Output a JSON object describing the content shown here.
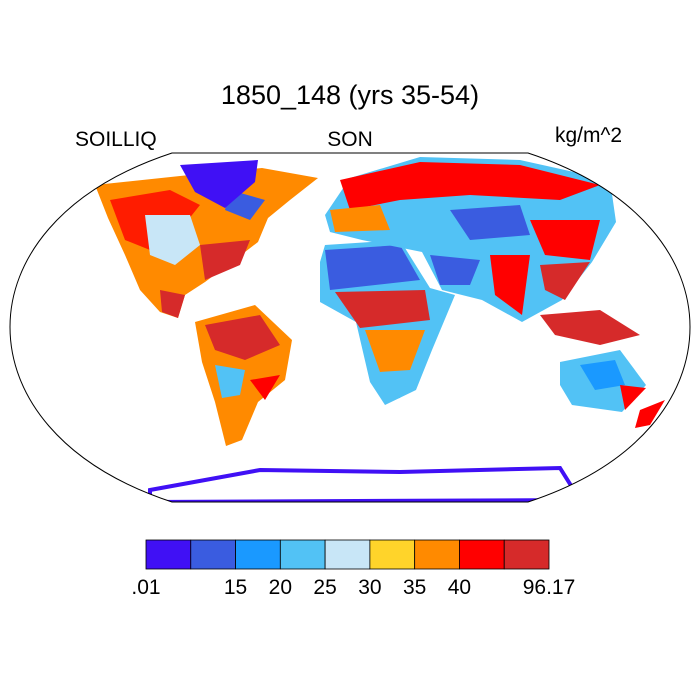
{
  "title": "1850_148 (yrs 35-54)",
  "left_string": "SOILLIQ",
  "center_string": "SON",
  "right_string": "kg/m^2",
  "colorbar": {
    "colors": [
      "#4010f5",
      "#3a5ce0",
      "#1a99ff",
      "#52c2f5",
      "#c8e6f7",
      "#ffd42a",
      "#ff8a00",
      "#ff0000",
      "#d62a2a"
    ],
    "labels": [
      {
        "text": ".01",
        "boundary": 0
      },
      {
        "text": "15",
        "boundary": 2
      },
      {
        "text": "20",
        "boundary": 3
      },
      {
        "text": "25",
        "boundary": 4
      },
      {
        "text": "30",
        "boundary": 5
      },
      {
        "text": "35",
        "boundary": 6
      },
      {
        "text": "40",
        "boundary": 7
      },
      {
        "text": "96.17",
        "boundary": 9
      }
    ]
  }
}
